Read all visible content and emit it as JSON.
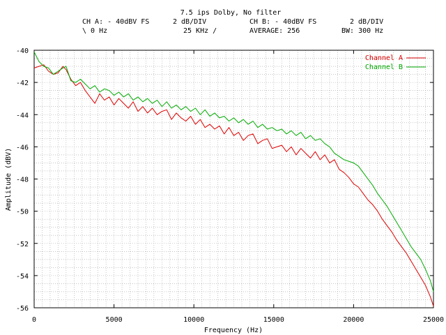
{
  "header": {
    "title": "7.5 ips Dolby, No filter",
    "ch_a_level": "CH A: - 40dBV  FS",
    "ch_a_div": "2 dB/DIV",
    "ch_b_level": "CH B: - 40dBV  FS",
    "ch_b_div": "2 dB/DIV",
    "start": "\\ 0 Hz",
    "stop": "25 KHz /",
    "average": "AVERAGE: 256",
    "bw": "BW: 300 Hz"
  },
  "colors": {
    "channel_a": "#dd0000",
    "channel_b": "#00aa00",
    "grid": "#a0a0a0",
    "axis": "#000000"
  },
  "chart_data": {
    "type": "line",
    "title": "7.5 ips Dolby, No filter",
    "xlabel": "Frequency (Hz)",
    "ylabel": "Amplitude (dBV)",
    "xlim": [
      0,
      25000
    ],
    "ylim": [
      -56,
      -40
    ],
    "xticks": [
      0,
      5000,
      10000,
      15000,
      20000,
      25000
    ],
    "yticks": [
      -40,
      -42,
      -44,
      -46,
      -48,
      -50,
      -52,
      -54,
      -56
    ],
    "grid": true,
    "legend_position": "top-right",
    "series": [
      {
        "name": "Channel A",
        "color": "#dd0000",
        "x": [
          0,
          300,
          600,
          900,
          1200,
          1500,
          1800,
          2000,
          2300,
          2600,
          2900,
          3200,
          3500,
          3800,
          4100,
          4400,
          4700,
          5000,
          5300,
          5600,
          5900,
          6200,
          6500,
          6800,
          7100,
          7400,
          7700,
          8000,
          8300,
          8600,
          8900,
          9200,
          9500,
          9800,
          10100,
          10400,
          10700,
          11000,
          11300,
          11600,
          11900,
          12200,
          12500,
          12800,
          13100,
          13400,
          13700,
          14000,
          14300,
          14600,
          14900,
          15200,
          15500,
          15800,
          16100,
          16400,
          16700,
          17000,
          17300,
          17600,
          17900,
          18200,
          18500,
          18800,
          19100,
          19400,
          19700,
          20000,
          20300,
          20600,
          20900,
          21200,
          21500,
          21800,
          22100,
          22400,
          22700,
          23000,
          23300,
          23600,
          23900,
          24200,
          24500,
          24800,
          25000
        ],
        "y": [
          -41.1,
          -41.0,
          -40.9,
          -41.3,
          -41.5,
          -41.4,
          -41.0,
          -41.2,
          -41.8,
          -42.2,
          -42.0,
          -42.5,
          -42.9,
          -43.3,
          -42.7,
          -43.1,
          -42.9,
          -43.4,
          -43.0,
          -43.3,
          -43.6,
          -43.2,
          -43.8,
          -43.5,
          -43.9,
          -43.6,
          -44.0,
          -43.8,
          -43.7,
          -44.3,
          -43.9,
          -44.2,
          -44.4,
          -44.1,
          -44.6,
          -44.3,
          -44.8,
          -44.6,
          -44.9,
          -44.7,
          -45.2,
          -44.8,
          -45.3,
          -45.1,
          -45.6,
          -45.3,
          -45.2,
          -45.8,
          -45.6,
          -45.5,
          -46.1,
          -46.0,
          -45.9,
          -46.3,
          -46.0,
          -46.5,
          -46.1,
          -46.4,
          -46.7,
          -46.3,
          -46.8,
          -46.5,
          -47.0,
          -46.8,
          -47.4,
          -47.6,
          -47.9,
          -48.3,
          -48.5,
          -48.9,
          -49.3,
          -49.6,
          -50.0,
          -50.5,
          -50.9,
          -51.3,
          -51.8,
          -52.2,
          -52.6,
          -53.1,
          -53.6,
          -54.1,
          -54.6,
          -55.3,
          -55.9
        ]
      },
      {
        "name": "Channel B",
        "color": "#00aa00",
        "x": [
          0,
          300,
          600,
          900,
          1200,
          1500,
          1800,
          2000,
          2300,
          2600,
          2900,
          3200,
          3500,
          3800,
          4100,
          4400,
          4700,
          5000,
          5300,
          5600,
          5900,
          6200,
          6500,
          6800,
          7100,
          7400,
          7700,
          8000,
          8300,
          8600,
          8900,
          9200,
          9500,
          9800,
          10100,
          10400,
          10700,
          11000,
          11300,
          11600,
          11900,
          12200,
          12500,
          12800,
          13100,
          13400,
          13700,
          14000,
          14300,
          14600,
          14900,
          15200,
          15500,
          15800,
          16100,
          16400,
          16700,
          17000,
          17300,
          17600,
          17900,
          18200,
          18500,
          18800,
          19100,
          19400,
          19700,
          20000,
          20300,
          20600,
          20900,
          21200,
          21500,
          21800,
          22100,
          22400,
          22700,
          23000,
          23300,
          23600,
          23900,
          24200,
          24500,
          24800,
          25000
        ],
        "y": [
          -40.1,
          -40.7,
          -41.0,
          -41.1,
          -41.5,
          -41.3,
          -41.1,
          -41.0,
          -41.9,
          -42.0,
          -41.8,
          -42.1,
          -42.4,
          -42.2,
          -42.6,
          -42.4,
          -42.5,
          -42.8,
          -42.6,
          -42.9,
          -42.7,
          -43.1,
          -42.9,
          -43.2,
          -43.0,
          -43.3,
          -43.1,
          -43.5,
          -43.2,
          -43.6,
          -43.4,
          -43.7,
          -43.5,
          -43.8,
          -43.6,
          -44.0,
          -43.7,
          -44.1,
          -43.9,
          -44.2,
          -44.1,
          -44.4,
          -44.2,
          -44.5,
          -44.3,
          -44.6,
          -44.4,
          -44.8,
          -44.6,
          -44.9,
          -44.8,
          -45.0,
          -44.9,
          -45.2,
          -45.0,
          -45.3,
          -45.1,
          -45.5,
          -45.3,
          -45.6,
          -45.5,
          -45.8,
          -46.0,
          -46.4,
          -46.6,
          -46.8,
          -46.9,
          -47.0,
          -47.2,
          -47.6,
          -48.0,
          -48.4,
          -48.9,
          -49.3,
          -49.7,
          -50.2,
          -50.7,
          -51.2,
          -51.7,
          -52.2,
          -52.6,
          -53.0,
          -53.6,
          -54.3,
          -55.0
        ]
      }
    ]
  }
}
